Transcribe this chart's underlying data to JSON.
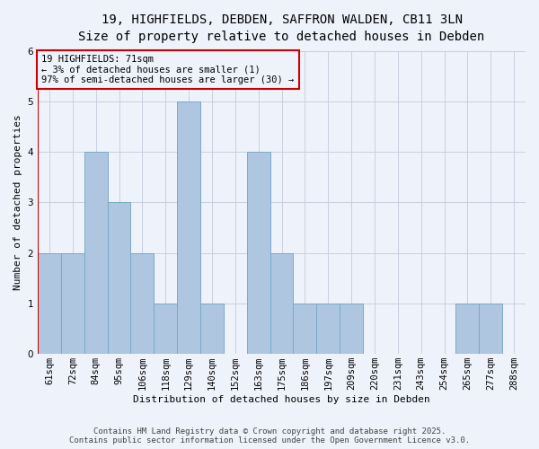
{
  "title_line1": "19, HIGHFIELDS, DEBDEN, SAFFRON WALDEN, CB11 3LN",
  "title_line2": "Size of property relative to detached houses in Debden",
  "xlabel": "Distribution of detached houses by size in Debden",
  "ylabel": "Number of detached properties",
  "footer_line1": "Contains HM Land Registry data © Crown copyright and database right 2025.",
  "footer_line2": "Contains public sector information licensed under the Open Government Licence v3.0.",
  "annotation_line1": "19 HIGHFIELDS: 71sqm",
  "annotation_line2": "← 3% of detached houses are smaller (1)",
  "annotation_line3": "97% of semi-detached houses are larger (30) →",
  "categories": [
    "61sqm",
    "72sqm",
    "84sqm",
    "95sqm",
    "106sqm",
    "118sqm",
    "129sqm",
    "140sqm",
    "152sqm",
    "163sqm",
    "175sqm",
    "186sqm",
    "197sqm",
    "209sqm",
    "220sqm",
    "231sqm",
    "243sqm",
    "254sqm",
    "265sqm",
    "277sqm",
    "288sqm"
  ],
  "values": [
    2,
    2,
    4,
    3,
    2,
    1,
    5,
    1,
    0,
    4,
    2,
    1,
    1,
    1,
    0,
    0,
    0,
    0,
    1,
    1,
    0
  ],
  "bar_color": "#aec6df",
  "bar_edge_color": "#7aaac8",
  "red_line_x": -0.5,
  "red_line_color": "#cc0000",
  "background_color": "#eef2fb",
  "grid_color": "#c8cfe0",
  "ylim": [
    0,
    6
  ],
  "yticks": [
    0,
    1,
    2,
    3,
    4,
    5,
    6
  ],
  "annotation_fontsize": 7.5,
  "title1_fontsize": 10,
  "title2_fontsize": 9,
  "axis_fontsize": 8,
  "tick_fontsize": 7.5,
  "footer_fontsize": 6.5
}
